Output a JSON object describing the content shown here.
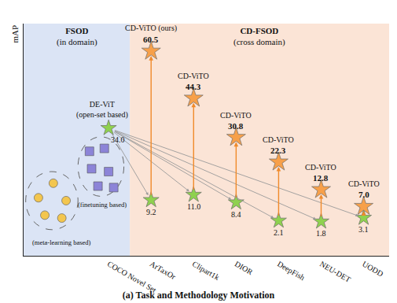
{
  "chart_data": {
    "type": "scatter",
    "title": "(a) Task and Methodology Motivation",
    "ylabel": "mAP",
    "categories": [
      "COCO Novel Set",
      "ArTaxOr",
      "Clipart1k",
      "DIOR",
      "DeepFish",
      "NEU-DET",
      "UODD"
    ],
    "ylim": [
      -10,
      70
    ],
    "tick_labels": "x",
    "grid": false,
    "data_labels": true,
    "marker": "star",
    "regions": [
      {
        "title": "FSOD",
        "subtitle": "(in domain)",
        "from": "COCO Novel Set",
        "to": "COCO Novel Set",
        "color": "#dbe4f5"
      },
      {
        "title": "CD-FSOD",
        "subtitle": "(cross domain)",
        "from": "ArTaxOr",
        "to": "UODD",
        "color": "#fbe4d6"
      }
    ],
    "groups": [
      {
        "label": "(meta-learning based)",
        "marker": "circle",
        "color": "#f3c64f"
      },
      {
        "label": "(finetuning based)",
        "marker": "square",
        "color": "#8c84d8"
      }
    ],
    "series": [
      {
        "color": "#8fd14f",
        "values": [
          34.0,
          9.2,
          11.0,
          8.4,
          2.1,
          1.8,
          3.1
        ],
        "value_labels": [
          "34.0",
          "9.2",
          "11.0",
          "8.4",
          "2.1",
          "1.8",
          "3.1"
        ],
        "point_labels": [
          [
            "DE-ViT",
            "(open-set based)"
          ],
          null,
          null,
          null,
          null,
          null,
          null
        ]
      },
      {
        "color": "#f7a04a",
        "values": [
          null,
          60.5,
          44.3,
          30.8,
          22.3,
          12.8,
          7.0
        ],
        "value_labels": [
          null,
          "60.5",
          "44.3",
          "30.8",
          "22.3",
          "12.8",
          "7.0"
        ],
        "point_labels": [
          null,
          [
            "CD-ViTO (ours)"
          ],
          [
            "CD-ViTO"
          ],
          [
            "CD-ViTO"
          ],
          [
            "CD-ViTO"
          ],
          [
            "CD-ViTO"
          ],
          [
            "CD-ViTO"
          ]
        ]
      }
    ]
  }
}
